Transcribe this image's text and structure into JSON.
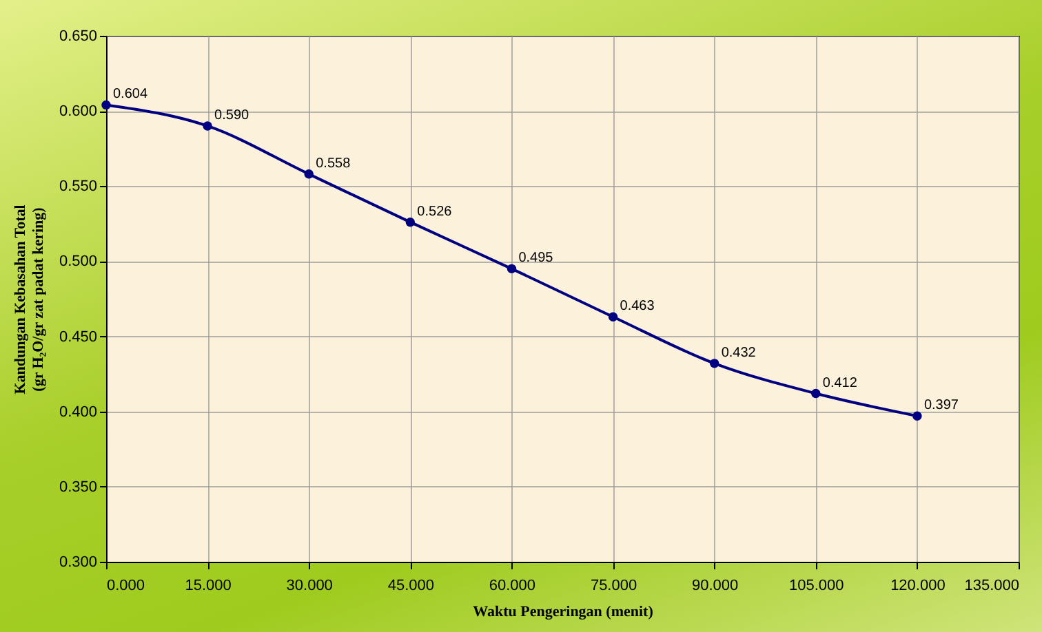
{
  "chart_data": {
    "type": "line",
    "xlabel": "Waktu Pengeringan (menit)",
    "ylabel": "Kandungan Kebasahan Total\n(gr H₂O/gr zat padat kering)",
    "x": [
      0,
      15,
      30,
      45,
      60,
      75,
      90,
      105,
      120
    ],
    "series": [
      {
        "color": "#000080",
        "values": [
          0.604,
          0.59,
          0.558,
          0.526,
          0.495,
          0.463,
          0.432,
          0.412,
          0.397
        ],
        "value_labels": [
          "0.604",
          "0.590",
          "0.558",
          "0.526",
          "0.495",
          "0.463",
          "0.432",
          "0.412",
          "0.397"
        ]
      }
    ],
    "xlim": [
      0,
      135
    ],
    "ylim": [
      0.3,
      0.65
    ],
    "xticks": [
      {
        "value": 0,
        "label": "0.000"
      },
      {
        "value": 15,
        "label": "15.000"
      },
      {
        "value": 30,
        "label": "30.000"
      },
      {
        "value": 45,
        "label": "45.000"
      },
      {
        "value": 60,
        "label": "60.000"
      },
      {
        "value": 75,
        "label": "75.000"
      },
      {
        "value": 90,
        "label": "90.000"
      },
      {
        "value": 105,
        "label": "105.000"
      },
      {
        "value": 120,
        "label": "120.000"
      },
      {
        "value": 135,
        "label": "135.000"
      }
    ],
    "yticks": [
      {
        "value": 0.3,
        "label": "0.300"
      },
      {
        "value": 0.35,
        "label": "0.350"
      },
      {
        "value": 0.4,
        "label": "0.400"
      },
      {
        "value": 0.45,
        "label": "0.450"
      },
      {
        "value": 0.5,
        "label": "0.500"
      },
      {
        "value": 0.55,
        "label": "0.550"
      },
      {
        "value": 0.6,
        "label": "0.600"
      },
      {
        "value": 0.65,
        "label": "0.650"
      }
    ],
    "grid": true,
    "marker": "circle",
    "line_style": "solid"
  }
}
